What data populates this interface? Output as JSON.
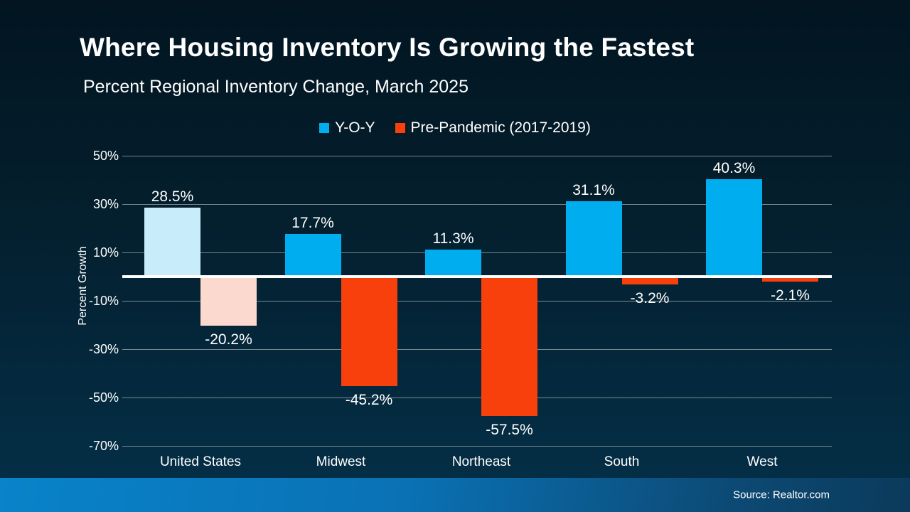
{
  "header": {
    "title": "Where Housing Inventory Is Growing the Fastest",
    "subtitle": "Percent Regional Inventory Change, March 2025"
  },
  "chart_data": {
    "type": "bar",
    "title": "Where Housing Inventory Is Growing the Fastest",
    "subtitle": "Percent Regional Inventory Change, March 2025",
    "categories": [
      "United States",
      "Midwest",
      "Northeast",
      "South",
      "West"
    ],
    "series": [
      {
        "name": "Y-O-Y",
        "color": "#00aeef",
        "highlight_color": "#c9ecfb",
        "values": [
          28.5,
          17.7,
          11.3,
          31.1,
          40.3
        ],
        "value_labels": [
          "28.5%",
          "17.7%",
          "11.3%",
          "31.1%",
          "40.3%"
        ]
      },
      {
        "name": "Pre-Pandemic (2017-2019)",
        "color": "#f8400d",
        "highlight_color": "#fcd9ce",
        "values": [
          -20.2,
          -45.2,
          -57.5,
          -3.2,
          -2.1
        ],
        "value_labels": [
          "-20.2%",
          "-45.2%",
          "-57.5%",
          "-3.2%",
          "-2.1%"
        ]
      }
    ],
    "highlight_category": "United States",
    "ylabel": "Percent Growth",
    "xlabel": "",
    "ylim": [
      -70,
      50
    ],
    "yticks": [
      50,
      30,
      10,
      -10,
      -30,
      -50,
      -70
    ],
    "ytick_labels": [
      "50%",
      "30%",
      "10%",
      "-10%",
      "-30%",
      "-50%",
      "-70%"
    ],
    "grid": true,
    "legend_position": "top"
  },
  "footer": {
    "source": "Source: Realtor.com"
  },
  "colors": {
    "background_top": "#021521",
    "background_bottom": "#043049",
    "grid": "#9eaab0",
    "zero_line": "#ffffff",
    "text": "#ffffff",
    "footer_left": "#0983ca",
    "footer_right": "#0b3a5b"
  }
}
